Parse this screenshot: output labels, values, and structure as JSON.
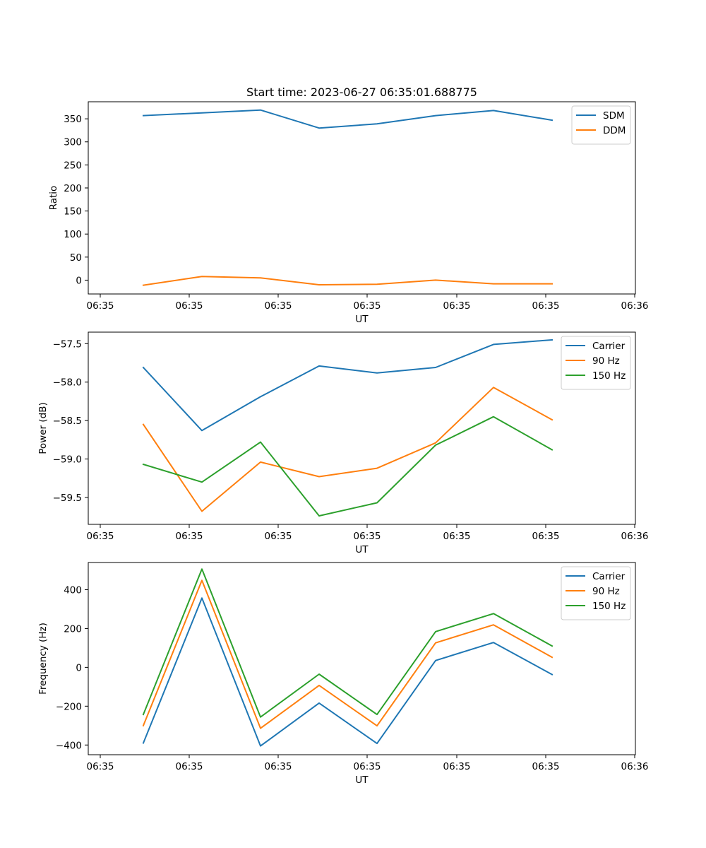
{
  "figure_title": "Start time: 2023-06-27 06:35:01.688775",
  "chart_data": [
    {
      "type": "line",
      "title": "Start time: 2023-06-27 06:35:01.688775",
      "xlabel": "UT",
      "ylabel": "Ratio",
      "x_tick_labels": [
        "06:35",
        "06:35",
        "06:35",
        "06:35",
        "06:35",
        "06:35",
        "06:36"
      ],
      "y_ticks": [
        0,
        50,
        100,
        150,
        200,
        250,
        300,
        350
      ],
      "ylim": [
        -30,
        387
      ],
      "legend": "top-right",
      "series": [
        {
          "name": "SDM",
          "color": "#1f77b4",
          "values": [
            357,
            363,
            369,
            330,
            339,
            357,
            368,
            347
          ]
        },
        {
          "name": "DDM",
          "color": "#ff7f0e",
          "values": [
            -11,
            8,
            5,
            -10,
            -9,
            0,
            -8,
            -8
          ]
        }
      ]
    },
    {
      "type": "line",
      "xlabel": "UT",
      "ylabel": "Power (dB)",
      "x_tick_labels": [
        "06:35",
        "06:35",
        "06:35",
        "06:35",
        "06:35",
        "06:35",
        "06:36"
      ],
      "y_ticks": [
        -59.5,
        -59.0,
        -58.5,
        -58.0,
        -57.5
      ],
      "y_tick_labels": [
        "−59.5",
        "−59.0",
        "−58.5",
        "−58.0",
        "−57.5"
      ],
      "ylim": [
        -59.85,
        -57.35
      ],
      "legend": "top-right",
      "series": [
        {
          "name": "Carrier",
          "color": "#1f77b4",
          "values": [
            -57.81,
            -58.63,
            -58.19,
            -57.79,
            -57.88,
            -57.81,
            -57.51,
            -57.45
          ]
        },
        {
          "name": "90 Hz",
          "color": "#ff7f0e",
          "values": [
            -58.55,
            -59.68,
            -59.04,
            -59.23,
            -59.12,
            -58.79,
            -58.07,
            -58.49
          ]
        },
        {
          "name": "150 Hz",
          "color": "#2ca02c",
          "values": [
            -59.07,
            -59.3,
            -58.78,
            -59.74,
            -59.57,
            -58.82,
            -58.45,
            -58.88
          ]
        }
      ]
    },
    {
      "type": "line",
      "xlabel": "UT",
      "ylabel": "Frequency (Hz)",
      "x_tick_labels": [
        "06:35",
        "06:35",
        "06:35",
        "06:35",
        "06:35",
        "06:35",
        "06:36"
      ],
      "y_ticks": [
        -400,
        -200,
        0,
        200,
        400
      ],
      "y_tick_labels": [
        "−400",
        "−200",
        "0",
        "200",
        "400"
      ],
      "ylim": [
        -450,
        540
      ],
      "legend": "top-right",
      "series": [
        {
          "name": "Carrier",
          "color": "#1f77b4",
          "values": [
            -390,
            357,
            -405,
            -184,
            -392,
            35,
            128,
            -37
          ]
        },
        {
          "name": "90 Hz",
          "color": "#ff7f0e",
          "values": [
            -300,
            448,
            -314,
            -93,
            -301,
            126,
            219,
            52
          ]
        },
        {
          "name": "150 Hz",
          "color": "#2ca02c",
          "values": [
            -243,
            506,
            -256,
            -35,
            -243,
            184,
            277,
            110
          ]
        }
      ]
    }
  ]
}
